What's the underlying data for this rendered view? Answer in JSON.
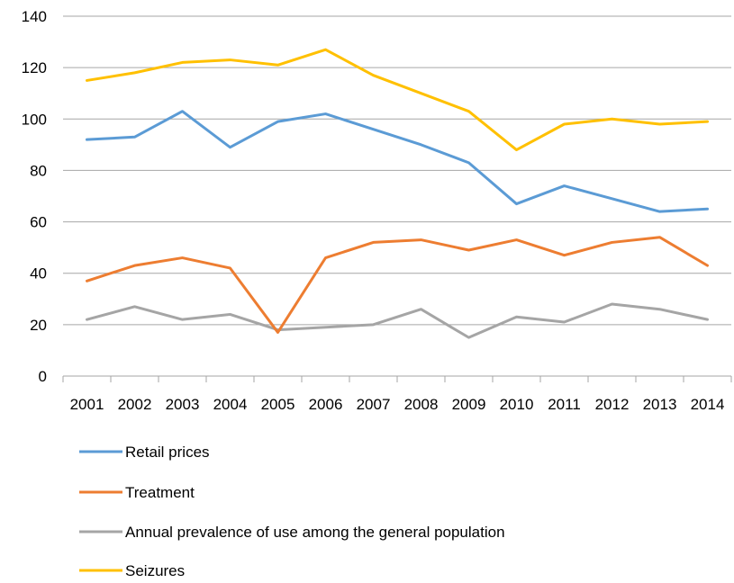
{
  "chart_data": {
    "type": "line",
    "title": "",
    "xlabel": "",
    "ylabel": "",
    "categories": [
      "2001",
      "2002",
      "2003",
      "2004",
      "2005",
      "2006",
      "2007",
      "2008",
      "2009",
      "2010",
      "2011",
      "2012",
      "2013",
      "2014"
    ],
    "ylim": [
      0,
      140
    ],
    "yticks": [
      0,
      20,
      40,
      60,
      80,
      100,
      120,
      140
    ],
    "grid": true,
    "legend_position": "bottom",
    "series": [
      {
        "name": "Retail prices",
        "color": "#5B9BD5",
        "values": [
          92,
          93,
          103,
          89,
          99,
          102,
          96,
          90,
          83,
          67,
          74,
          69,
          64,
          65
        ]
      },
      {
        "name": "Treatment",
        "color": "#ED7D31",
        "values": [
          37,
          43,
          46,
          42,
          17,
          46,
          52,
          53,
          49,
          53,
          47,
          52,
          54,
          43
        ]
      },
      {
        "name": "Annual prevalence of use among the general population",
        "color": "#A5A5A5",
        "values": [
          22,
          27,
          22,
          24,
          18,
          19,
          20,
          26,
          15,
          23,
          21,
          28,
          26,
          22
        ]
      },
      {
        "name": "Seizures",
        "color": "#FFC000",
        "values": [
          115,
          118,
          122,
          123,
          121,
          127,
          117,
          110,
          103,
          88,
          98,
          100,
          98,
          99
        ]
      }
    ]
  }
}
